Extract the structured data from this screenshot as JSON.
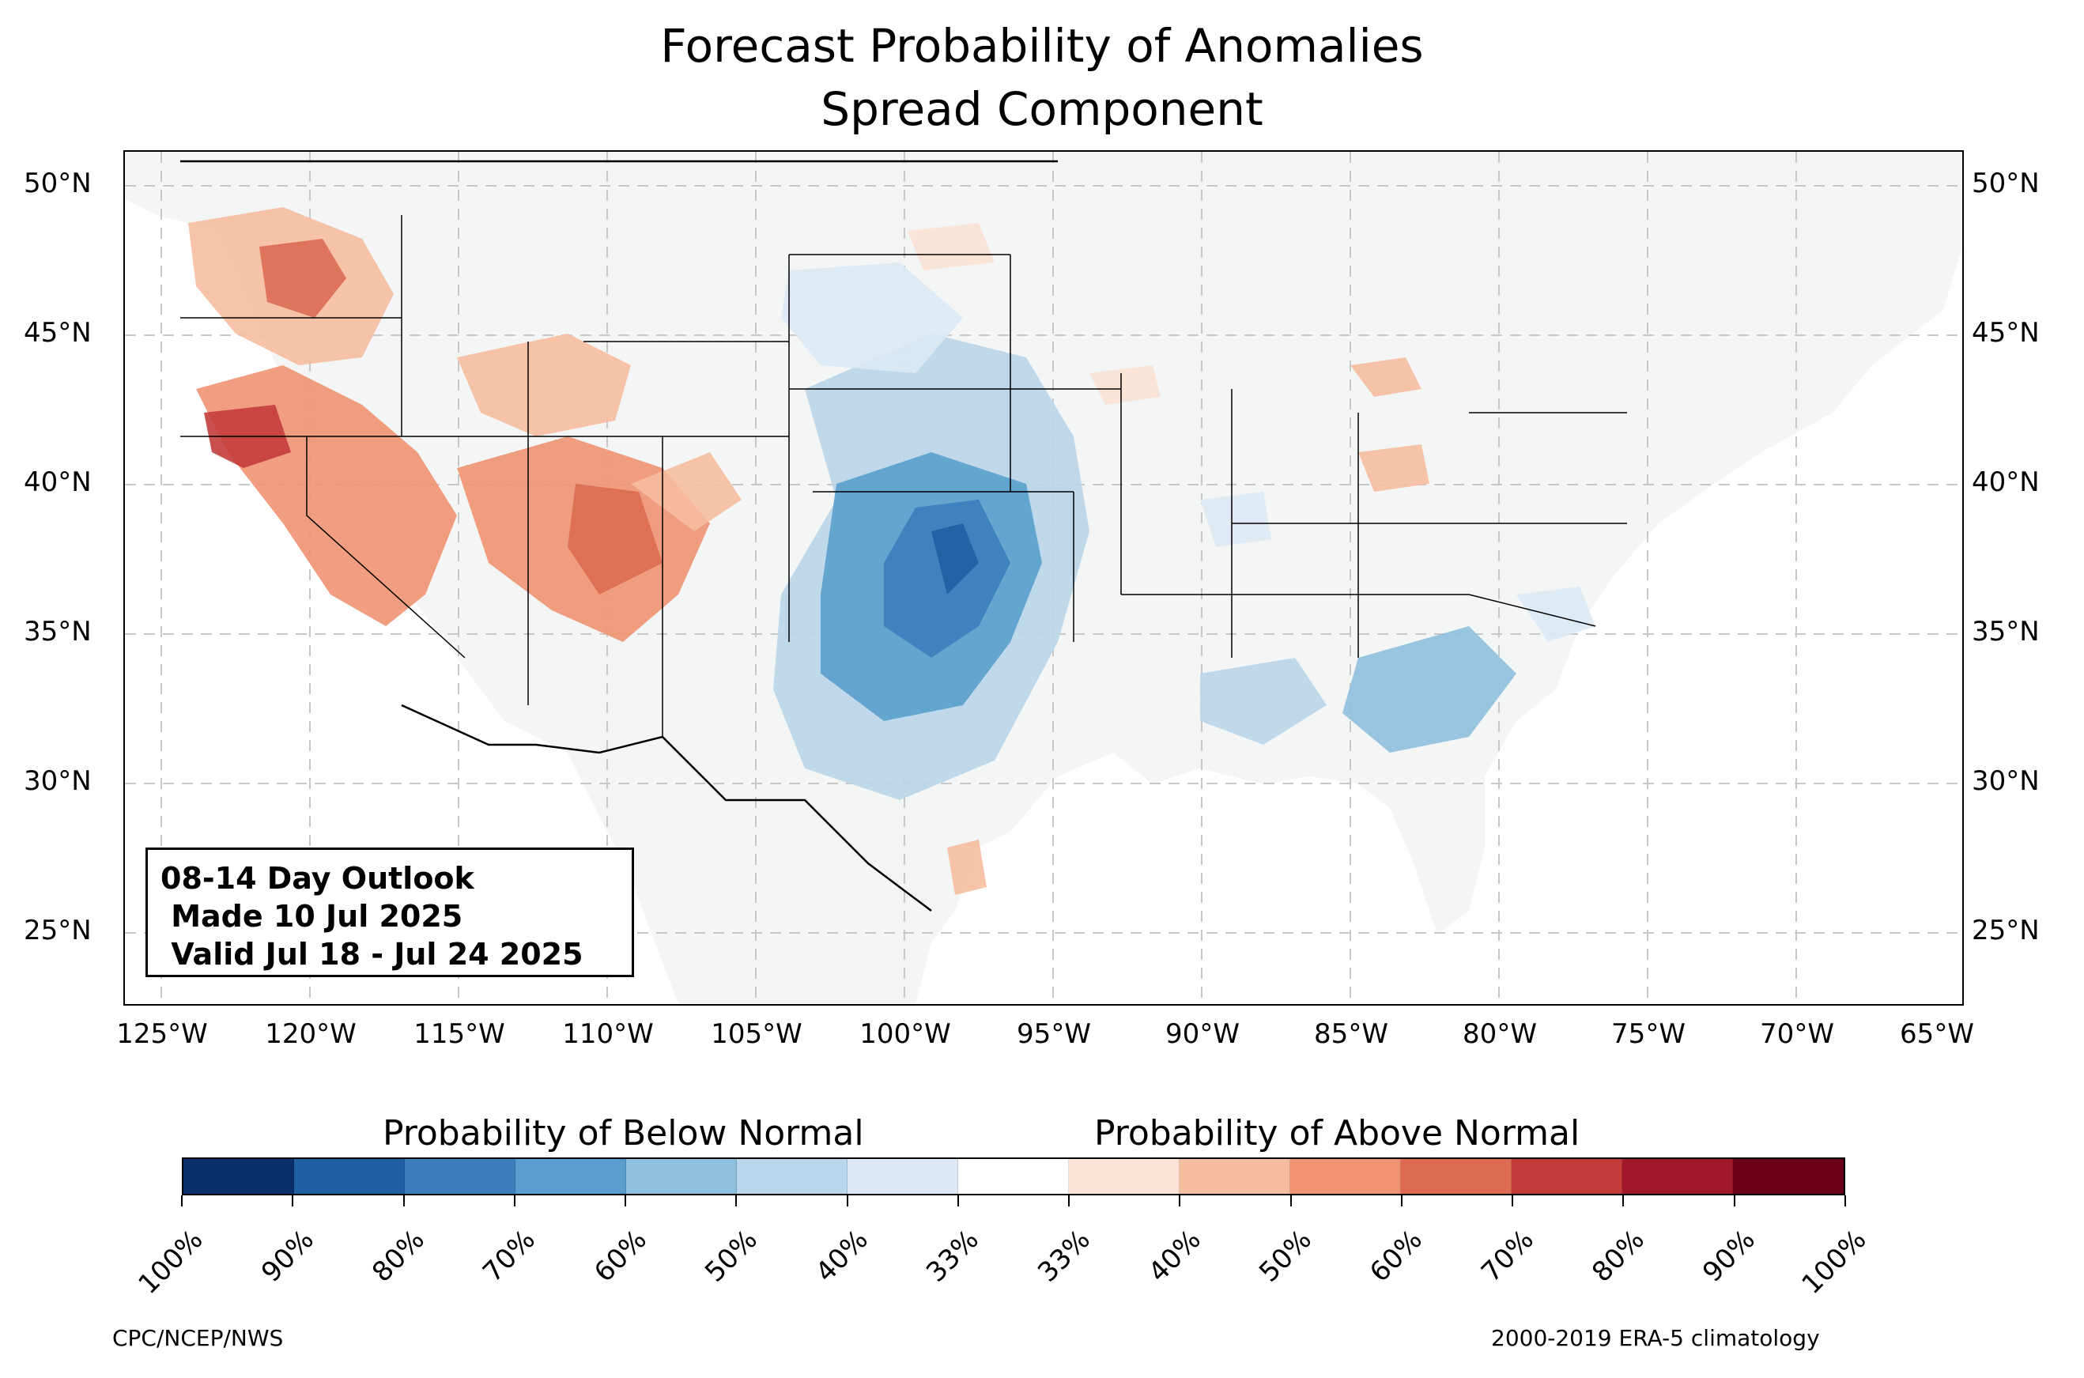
{
  "title_line1": "Forecast Probability of Anomalies",
  "title_line2": "Spread Component",
  "lat_labels": [
    "50°N",
    "45°N",
    "40°N",
    "35°N",
    "30°N",
    "25°N"
  ],
  "lon_labels": [
    "125°W",
    "120°W",
    "115°W",
    "110°W",
    "105°W",
    "100°W",
    "95°W",
    "90°W",
    "85°W",
    "80°W",
    "75°W",
    "70°W",
    "65°W"
  ],
  "info": {
    "line1": "08-14 Day Outlook",
    "line2": " Made 10 Jul 2025",
    "line3": " Valid Jul 18 - Jul 24 2025"
  },
  "colorbar": {
    "below_label": "Probability of Below Normal",
    "above_label": "Probability of Above Normal",
    "tick_labels": [
      "100%",
      "90%",
      "80%",
      "70%",
      "60%",
      "50%",
      "40%",
      "33%",
      "33%",
      "40%",
      "50%",
      "60%",
      "70%",
      "80%",
      "90%",
      "100%"
    ],
    "colors": [
      "#08306b",
      "#1f5fa3",
      "#3a7ebb",
      "#5a9ecd",
      "#8fc0de",
      "#b9d6ea",
      "#dce9f4",
      "#ffffff",
      "#fbe2d4",
      "#f6bca0",
      "#ee9272",
      "#dc6b52",
      "#c43d3c",
      "#a1182a",
      "#6a0018"
    ]
  },
  "colors": {
    "land": "#f4f6f6",
    "ocean": "#ffffff",
    "grid": "#c8c8c8"
  },
  "footer_left": "CPC/NCEP/NWS",
  "footer_right": "2000-2019 ERA-5 climatology"
}
